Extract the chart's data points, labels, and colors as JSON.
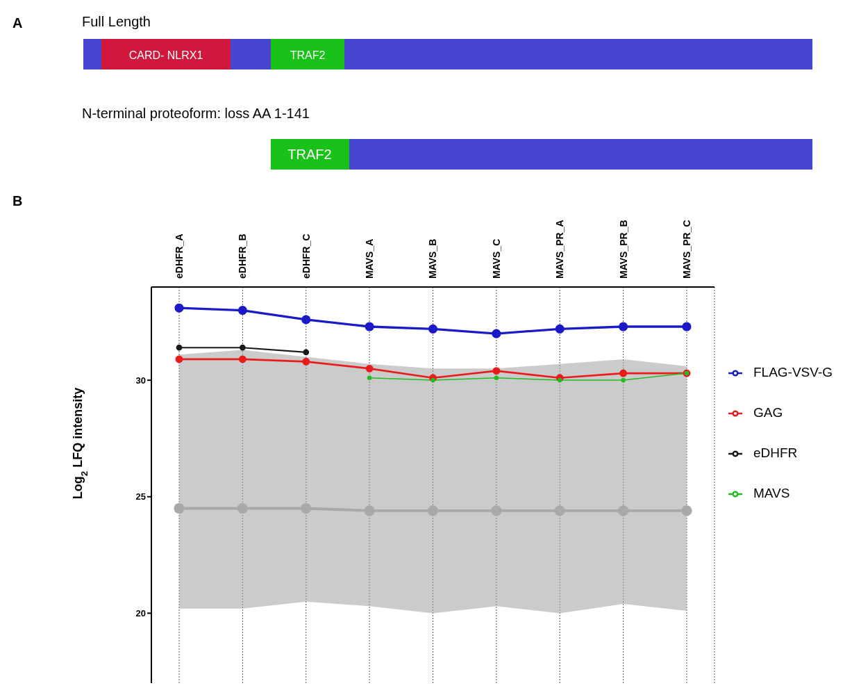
{
  "chart_data": [
    {
      "type": "other",
      "annotations": [
        "A",
        "Full Length",
        "CARD- NLRX1",
        "TRAF2",
        "N-terminal proteoform: loss AA 1-141",
        "TRAF2"
      ]
    },
    {
      "type": "line",
      "annotations": [
        "B"
      ],
      "ylabel": "Log$_{2}$ LFQ intensity",
      "categories": [
        "eDHFR_A",
        "eDHFR_B",
        "eDHFR_C",
        "MAVS_A",
        "MAVS_B",
        "MAVS_C",
        "MAVS_PR_A",
        "MAVS_PR_B",
        "MAVS_PR_C"
      ],
      "ylim": [
        17,
        34
      ],
      "yticks": [
        20,
        25,
        30
      ],
      "grid": "x",
      "legend": "right",
      "marker": "circle",
      "line_style": "solid",
      "series": [
        {
          "color": "#a9a9a9",
          "values": [
            24.5,
            24.5,
            24.5,
            24.4,
            24.4,
            24.4,
            24.4,
            24.4,
            24.4
          ],
          "lower": [
            20.2,
            20.2,
            20.5,
            20.3,
            20.0,
            20.3,
            20.0,
            20.4,
            20.1
          ],
          "upper": [
            31.1,
            31.3,
            31.0,
            30.7,
            30.5,
            30.5,
            30.7,
            30.9,
            30.6
          ]
        },
        {
          "name": "FLAG-VSV-G",
          "color": "#1a1ac8",
          "values": [
            33.1,
            33.0,
            32.6,
            32.3,
            32.2,
            32.0,
            32.2,
            32.3,
            32.3
          ]
        },
        {
          "name": "GAG",
          "color": "#e81c1c",
          "values": [
            30.9,
            30.9,
            30.8,
            30.5,
            30.1,
            30.4,
            30.1,
            30.3,
            30.3
          ]
        },
        {
          "name": "eDHFR",
          "color": "#1a1a1a",
          "values": [
            31.4,
            31.4,
            31.2,
            null,
            null,
            null,
            null,
            null,
            null
          ]
        },
        {
          "name": "MAVS",
          "color": "#22bb22",
          "values": [
            null,
            null,
            null,
            30.1,
            30.0,
            30.1,
            30.0,
            30.0,
            30.3
          ]
        }
      ]
    }
  ]
}
